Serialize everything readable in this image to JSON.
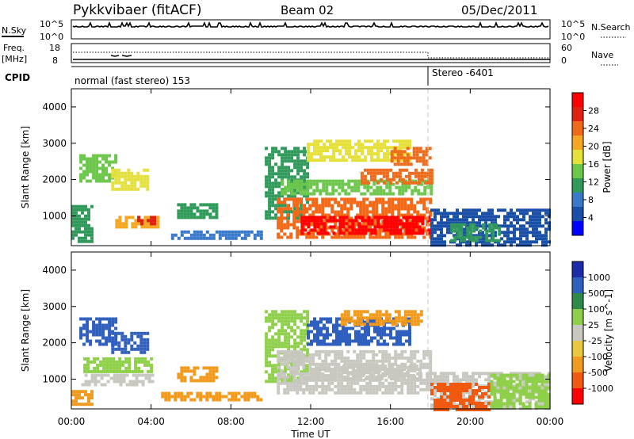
{
  "header": {
    "station": "Pykkvibaer (fitACF)",
    "beam": "Beam 02",
    "date": "05/Dec/2011"
  },
  "nsky_panel": {
    "left_label": "N.Sky",
    "right_label": "N.Search",
    "ticks_left": [
      "10^5",
      "10^0"
    ],
    "ticks_right": [
      "10^5",
      "10^0"
    ]
  },
  "freq_panel": {
    "left_label_1": "Freq.",
    "left_label_2": "[MHz]",
    "right_label": "Nave",
    "ticks_left": [
      "18",
      "8"
    ],
    "ticks_right": [
      "60",
      "0"
    ]
  },
  "cpid": {
    "label": "CPID",
    "mode_1": "normal (fast stereo) 153",
    "mode_2": "Stereo -6401"
  },
  "colors": {
    "power_scale": [
      "#0000ff",
      "#1a4fa8",
      "#3a78c8",
      "#2f9a5a",
      "#6cc84a",
      "#e6e03a",
      "#f5a623",
      "#f06a1a",
      "#e02010",
      "#ff0000"
    ],
    "velocity_scale": [
      "#1c2ca8",
      "#2f5fbf",
      "#2f8a4a",
      "#8fd04a",
      "#c8c8c0",
      "#e8c840",
      "#f09a20",
      "#f05a10",
      "#ff0000"
    ]
  },
  "chart_data": [
    {
      "type": "heatmap",
      "panel": "power",
      "ylabel": "Slant Range [km]",
      "y_ticks": [
        "1000",
        "2000",
        "3000",
        "4000"
      ],
      "ylim": [
        180,
        4500
      ],
      "xlabel": "",
      "colorbar_label": "Power [dB]",
      "colorbar_ticks": [
        "4",
        "8",
        "12",
        "16",
        "20",
        "24",
        "28"
      ],
      "colorbar_range": [
        0,
        30
      ],
      "regions": [
        {
          "x0": 0.0,
          "x1": 1.0,
          "y0": 300,
          "y1": 1300,
          "v": 9
        },
        {
          "x0": 0.4,
          "x1": 2.3,
          "y0": 2000,
          "y1": 2700,
          "v": 13
        },
        {
          "x0": 2.0,
          "x1": 3.8,
          "y0": 1700,
          "y1": 2300,
          "v": 15
        },
        {
          "x0": 2.2,
          "x1": 4.3,
          "y0": 700,
          "y1": 1000,
          "v": 19
        },
        {
          "x0": 3.3,
          "x1": 4.2,
          "y0": 800,
          "y1": 1000,
          "v": 24
        },
        {
          "x0": 5.3,
          "x1": 7.3,
          "y0": 950,
          "y1": 1350,
          "v": 10
        },
        {
          "x0": 5.0,
          "x1": 9.5,
          "y0": 400,
          "y1": 600,
          "v": 8
        },
        {
          "x0": 9.7,
          "x1": 11.8,
          "y0": 900,
          "y1": 2900,
          "v": 11
        },
        {
          "x0": 10.3,
          "x1": 18.0,
          "y0": 400,
          "y1": 1500,
          "v": 23
        },
        {
          "x0": 11.5,
          "x1": 18.0,
          "y0": 550,
          "y1": 1000,
          "v": 27
        },
        {
          "x0": 10.5,
          "x1": 18.0,
          "y0": 1600,
          "y1": 2000,
          "v": 14
        },
        {
          "x0": 14.5,
          "x1": 18.0,
          "y0": 1900,
          "y1": 2300,
          "v": 22
        },
        {
          "x0": 11.8,
          "x1": 17.0,
          "y0": 2500,
          "y1": 3100,
          "v": 15
        },
        {
          "x0": 16.0,
          "x1": 18.0,
          "y0": 2400,
          "y1": 2900,
          "v": 21
        },
        {
          "x0": 18.0,
          "x1": 24.0,
          "y0": 200,
          "y1": 1200,
          "v": 5
        },
        {
          "x0": 19.0,
          "x1": 21.5,
          "y0": 300,
          "y1": 800,
          "v": 10
        }
      ]
    },
    {
      "type": "heatmap",
      "panel": "velocity",
      "ylabel": "Slant Range [km]",
      "y_ticks": [
        "1000",
        "2000",
        "3000",
        "4000"
      ],
      "ylim": [
        180,
        4500
      ],
      "xlabel": "Time UT",
      "x_ticks": [
        "00:00",
        "04:00",
        "08:00",
        "12:00",
        "16:00",
        "20:00",
        "00:00"
      ],
      "xlim": [
        0,
        24
      ],
      "colorbar_label": "Velocity [m s^-1]",
      "colorbar_ticks": [
        "1000",
        "500",
        "100",
        "25",
        "-25",
        "-100",
        "-500",
        "-1000"
      ],
      "colorbar_range": [
        -1000,
        1000
      ],
      "regions": [
        {
          "x0": 0.0,
          "x1": 1.0,
          "y0": 300,
          "y1": 700,
          "v": -150
        },
        {
          "x0": 0.4,
          "x1": 2.3,
          "y0": 2000,
          "y1": 2700,
          "v": 120
        },
        {
          "x0": 2.0,
          "x1": 3.8,
          "y0": 1700,
          "y1": 2300,
          "v": 300
        },
        {
          "x0": 0.5,
          "x1": 4.0,
          "y0": 850,
          "y1": 1150,
          "v": 0
        },
        {
          "x0": 0.6,
          "x1": 4.0,
          "y0": 1200,
          "y1": 1600,
          "v": 60
        },
        {
          "x0": 5.3,
          "x1": 7.3,
          "y0": 950,
          "y1": 1350,
          "v": -200
        },
        {
          "x0": 4.5,
          "x1": 9.5,
          "y0": 450,
          "y1": 650,
          "v": -150
        },
        {
          "x0": 9.7,
          "x1": 11.8,
          "y0": 900,
          "y1": 2900,
          "v": 60
        },
        {
          "x0": 10.3,
          "x1": 18.0,
          "y0": 600,
          "y1": 1800,
          "v": 0
        },
        {
          "x0": 12.0,
          "x1": 17.5,
          "y0": 1000,
          "y1": 1400,
          "v": 0
        },
        {
          "x0": 11.8,
          "x1": 17.0,
          "y0": 2000,
          "y1": 2700,
          "v": 150
        },
        {
          "x0": 13.5,
          "x1": 17.5,
          "y0": 2500,
          "y1": 2900,
          "v": -150
        },
        {
          "x0": 18.0,
          "x1": 24.0,
          "y0": 200,
          "y1": 1200,
          "v": 0
        },
        {
          "x0": 18.0,
          "x1": 21.0,
          "y0": 200,
          "y1": 900,
          "v": -700
        },
        {
          "x0": 21.0,
          "x1": 24.0,
          "y0": 250,
          "y1": 1150,
          "v": 80
        }
      ]
    }
  ],
  "x_axis": {
    "label": "Time UT",
    "ticks": [
      "00:00",
      "04:00",
      "08:00",
      "12:00",
      "16:00",
      "20:00",
      "00:00"
    ]
  }
}
